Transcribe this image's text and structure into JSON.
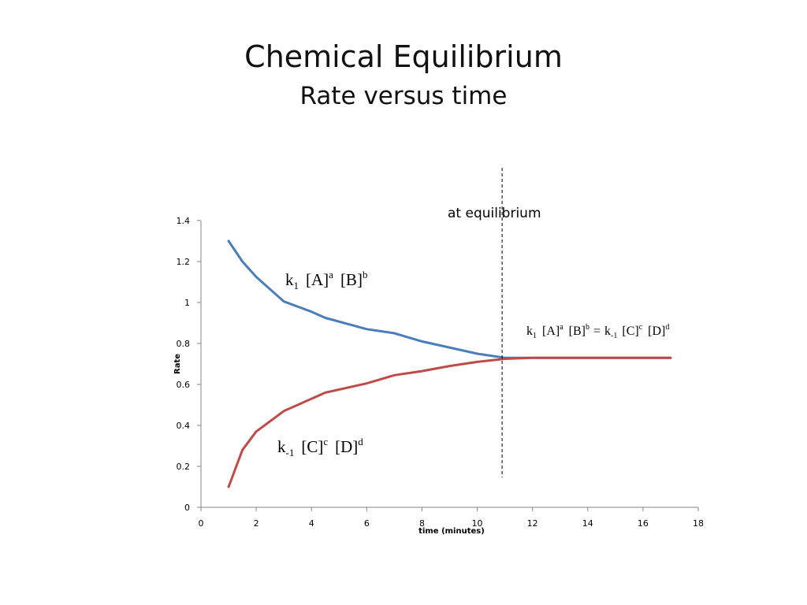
{
  "slide": {
    "title": "Chemical Equilibrium",
    "subtitle": "Rate versus time"
  },
  "colors": {
    "forward": "#4a7ebb",
    "reverse": "#be4b48",
    "axis": "#868686",
    "text": "#000000"
  },
  "chart_data": {
    "type": "line",
    "title": "",
    "xlabel": "time (minutes)",
    "ylabel": "Rate",
    "xlim": [
      0,
      18
    ],
    "ylim": [
      0,
      1.4
    ],
    "xticks": [
      0,
      2,
      4,
      6,
      8,
      10,
      12,
      14,
      16,
      18
    ],
    "yticks": [
      0,
      0.2,
      0.4,
      0.6,
      0.8,
      1,
      1.2,
      1.4
    ],
    "grid": false,
    "legend": "none",
    "series": [
      {
        "color": "#4a7ebb",
        "x": [
          1,
          1.5,
          2,
          3,
          4,
          4.5,
          6,
          7,
          8,
          10,
          11,
          12,
          17
        ],
        "y": [
          1.3,
          1.2,
          1.125,
          1.005,
          0.955,
          0.925,
          0.87,
          0.85,
          0.81,
          0.75,
          0.73,
          0.73,
          0.73
        ]
      },
      {
        "color": "#be4b48",
        "x": [
          1,
          1.5,
          2,
          3,
          4,
          4.5,
          6,
          7,
          8,
          9,
          10,
          11,
          12,
          17
        ],
        "y": [
          0.1,
          0.28,
          0.37,
          0.47,
          0.53,
          0.56,
          0.605,
          0.645,
          0.665,
          0.69,
          0.71,
          0.725,
          0.73,
          0.73
        ]
      }
    ],
    "annotations": {
      "equilibrium_line_x": 10.9,
      "equilibrium_label": "at equilibrium",
      "forward_expression": {
        "k": "k",
        "k_sub": "1",
        "a_base": "[A]",
        "a_sup": "a",
        "b_base": "[B]",
        "b_sup": "b"
      },
      "reverse_expression": {
        "k": "k",
        "k_sub": "-1",
        "c_base": "[C]",
        "c_sup": "c",
        "d_base": "[D]",
        "d_sup": "d"
      },
      "equality": {
        "k1": "k",
        "k1_sub": "1",
        "a_base": "[A]",
        "a_sup": "a",
        "b_base": "[B]",
        "b_sup": "b",
        "equals": "=",
        "k2": "k",
        "k2_sub": "-1",
        "c_base": "[C]",
        "c_sup": "c",
        "d_base": "[D]",
        "d_sup": "d"
      }
    }
  }
}
